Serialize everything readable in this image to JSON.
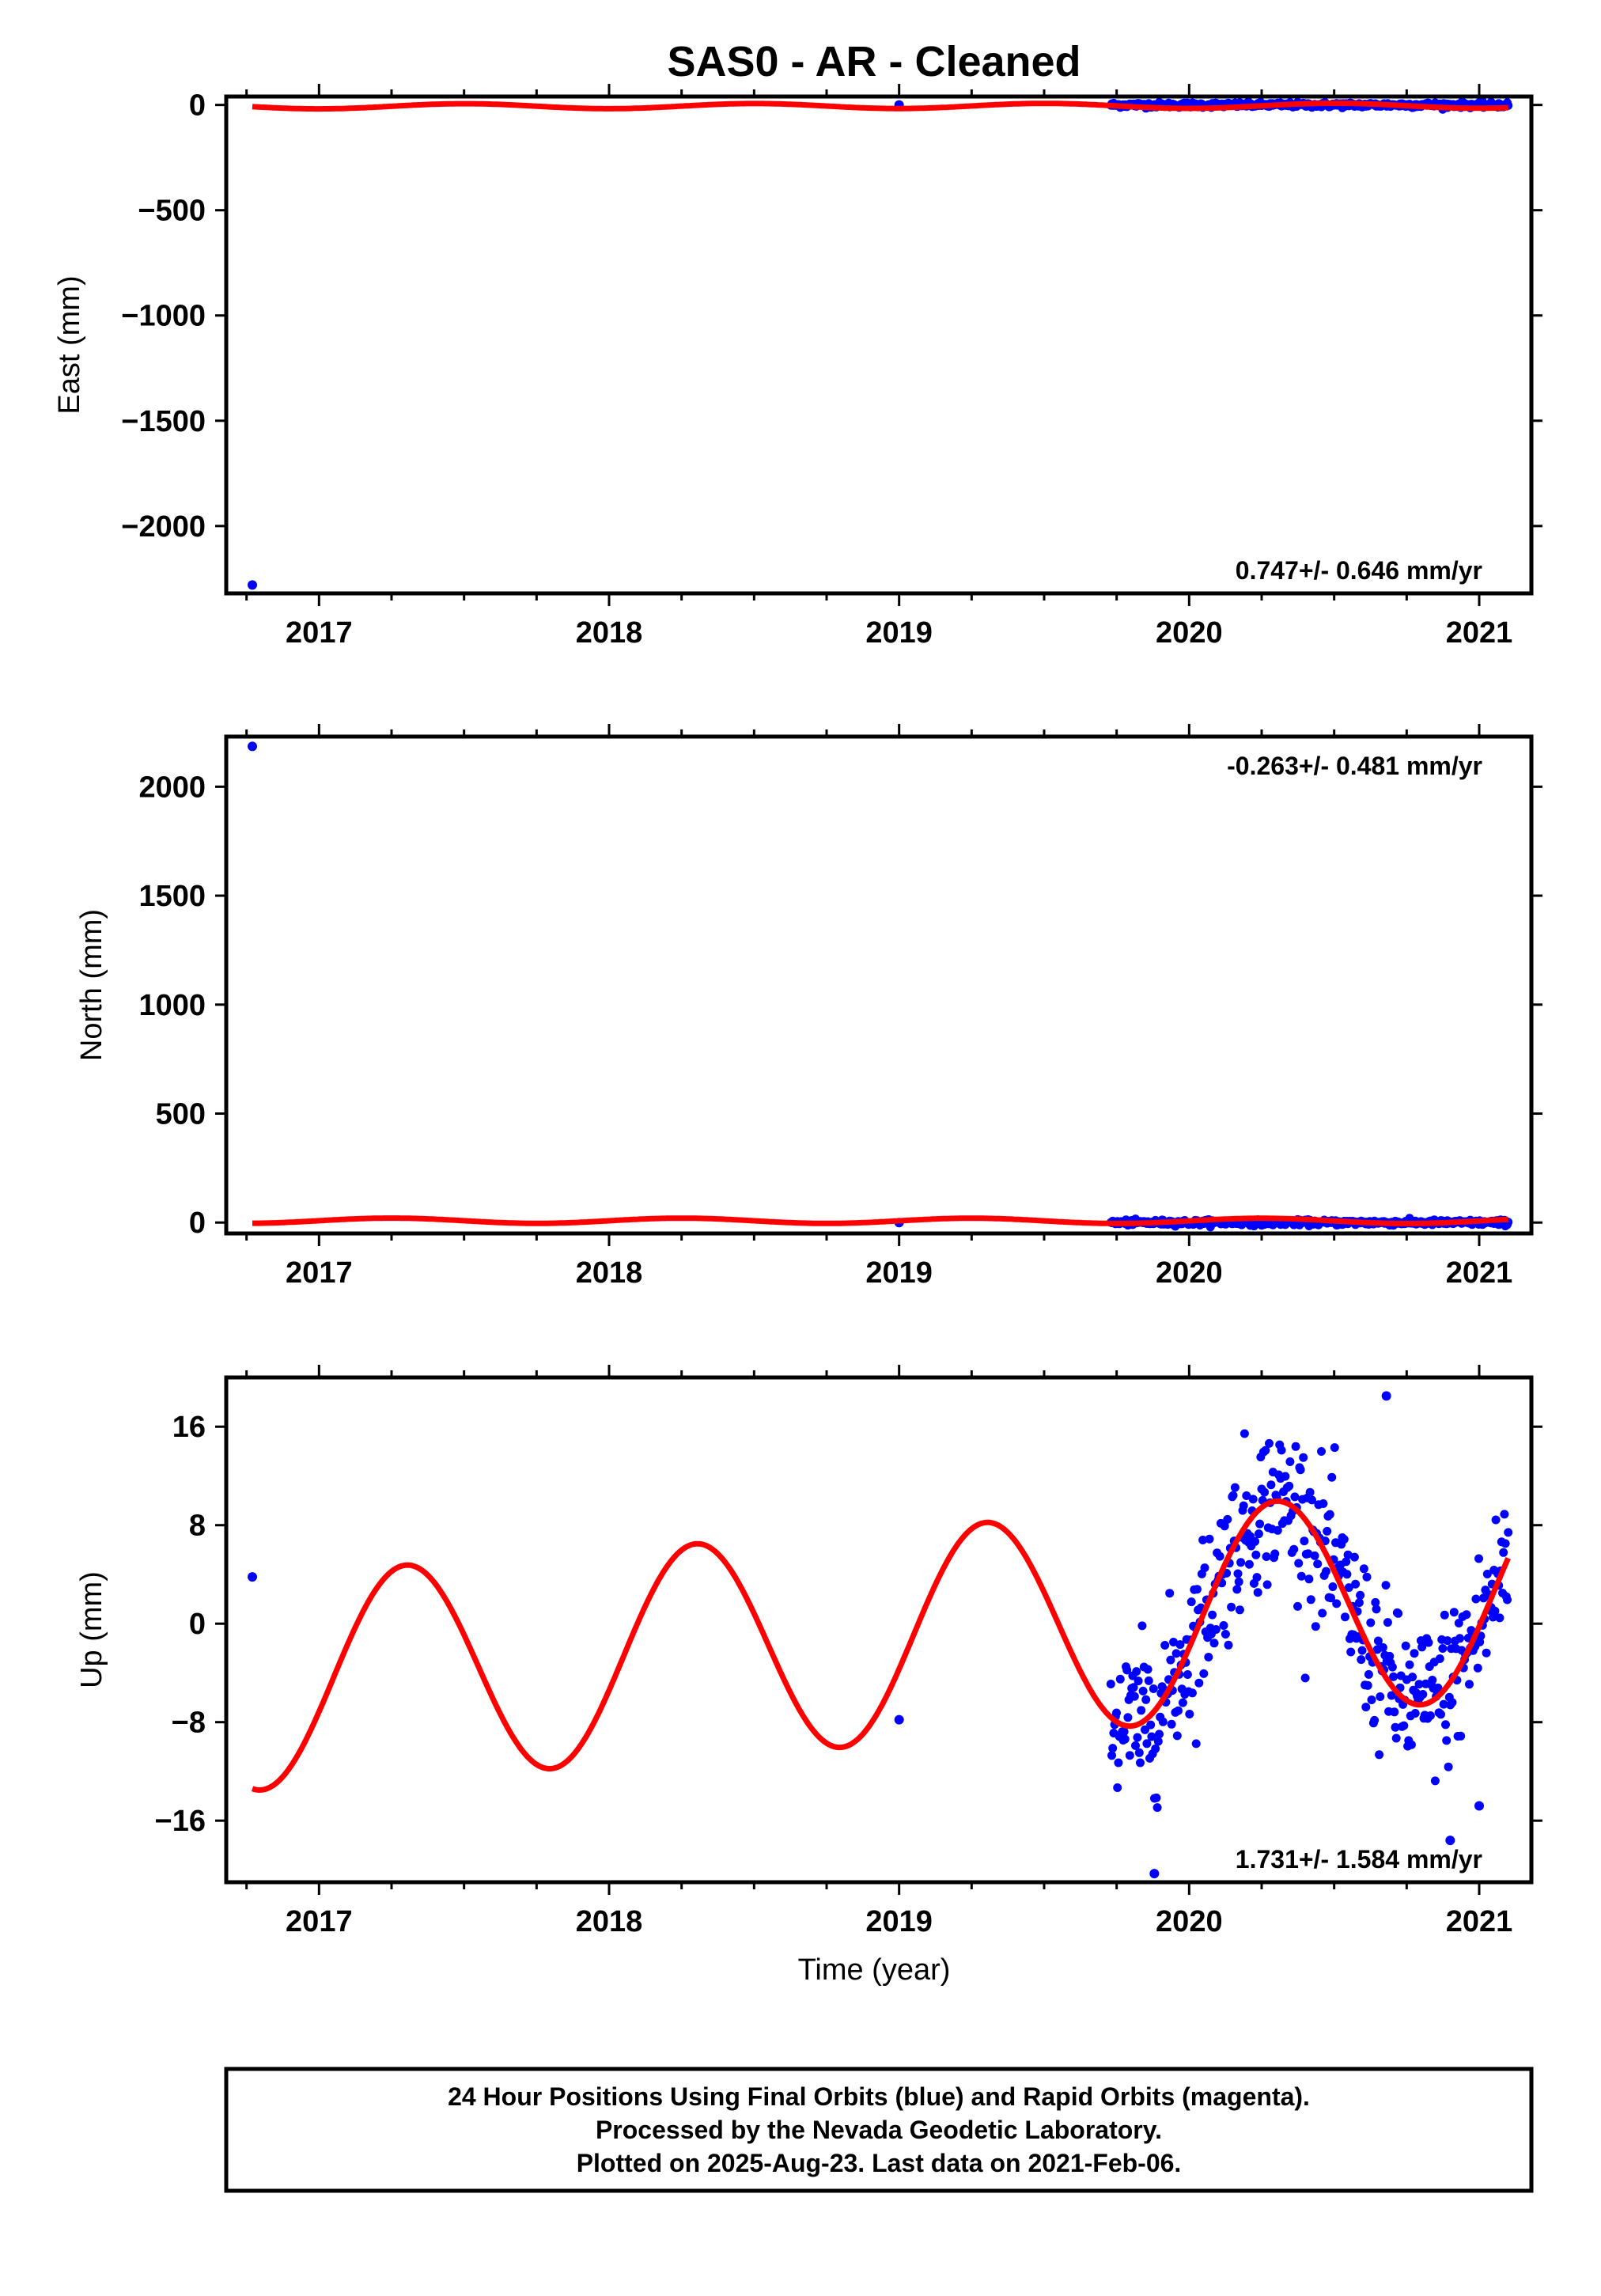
{
  "title": "SAS0  - AR - Cleaned",
  "xlabel": "Time (year)",
  "footer": {
    "line1": "24 Hour Positions Using Final Orbits (blue) and Rapid Orbits (magenta).",
    "line2": "Processed by the Nevada Geodetic Laboratory.",
    "line3": "Plotted on 2025-Aug-23. Last data on 2021-Feb-06."
  },
  "colors": {
    "data": "#0000ff",
    "model": "#ff0000",
    "frame": "#000000"
  },
  "chart_data": [
    {
      "type": "scatter",
      "ylabel": "East (mm)",
      "rate_label": "0.747+/- 0.646 mm/yr",
      "rate_position": "bottom-right",
      "xlim": [
        2016.68,
        2021.18
      ],
      "ylim": [
        -2320,
        40
      ],
      "yticks": [
        0,
        -500,
        -1000,
        -1500,
        -2000
      ],
      "ytick_labels": [
        "0",
        "−500",
        "−1000",
        "−1500",
        "−2000"
      ],
      "xticks": [
        2017,
        2018,
        2019,
        2020,
        2021
      ],
      "xtick_labels": [
        "2017",
        "2018",
        "2019",
        "2020",
        "2021"
      ],
      "outliers": [
        {
          "x": 2016.77,
          "y": -2280
        },
        {
          "x": 2019.0,
          "y": 0
        }
      ],
      "dense_band": {
        "x_start": 2019.73,
        "x_end": 2021.1,
        "y_center": 0,
        "spread": 6
      },
      "model": {
        "x_start": 2016.77,
        "x_end": 2021.1,
        "offset": -5,
        "rate": 0.747,
        "annual_amp": 12,
        "annual_phase": 0.25
      }
    },
    {
      "type": "scatter",
      "ylabel": "North (mm)",
      "rate_label": "-0.263+/- 0.481 mm/yr",
      "rate_position": "top-right",
      "xlim": [
        2016.68,
        2021.18
      ],
      "ylim": [
        -50,
        2230
      ],
      "yticks": [
        0,
        500,
        1000,
        1500,
        2000
      ],
      "ytick_labels": [
        "0",
        "500",
        "1000",
        "1500",
        "2000"
      ],
      "xticks": [
        2017,
        2018,
        2019,
        2020,
        2021
      ],
      "xtick_labels": [
        "2017",
        "2018",
        "2019",
        "2020",
        "2021"
      ],
      "outliers": [
        {
          "x": 2016.77,
          "y": 2185
        },
        {
          "x": 2019.0,
          "y": 0
        }
      ],
      "dense_band": {
        "x_start": 2019.73,
        "x_end": 2021.1,
        "y_center": 0,
        "spread": 6
      },
      "model": {
        "x_start": 2016.77,
        "x_end": 2021.1,
        "offset": 8,
        "rate": -0.263,
        "annual_amp": 12,
        "annual_phase": 0.0
      }
    },
    {
      "type": "scatter",
      "ylabel": "Up (mm)",
      "rate_label": "1.731+/- 1.584 mm/yr",
      "rate_position": "bottom-right",
      "xlim": [
        2016.68,
        2021.18
      ],
      "ylim": [
        -21,
        20
      ],
      "yticks": [
        16,
        8,
        0,
        -8,
        -16
      ],
      "ytick_labels": [
        "16",
        "8",
        "0",
        "−8",
        "−16"
      ],
      "xticks": [
        2017,
        2018,
        2019,
        2020,
        2021
      ],
      "xtick_labels": [
        "2017",
        "2018",
        "2019",
        "2020",
        "2021"
      ],
      "outliers": [
        {
          "x": 2016.77,
          "y": 3.8
        },
        {
          "x": 2019.0,
          "y": -7.8
        },
        {
          "x": 2019.88,
          "y": -20.3
        },
        {
          "x": 2020.9,
          "y": -17.6
        },
        {
          "x": 2021.0,
          "y": -14.8
        },
        {
          "x": 2020.68,
          "y": 18.5
        }
      ],
      "dense_band": {
        "x_start": 2019.73,
        "x_end": 2021.1,
        "spread": 3.2
      },
      "model": {
        "x_start": 2016.77,
        "x_end": 2021.1,
        "offset": -1.0,
        "rate": 1.731,
        "annual_amp": 8.7,
        "annual_phase": 0.05
      }
    }
  ]
}
